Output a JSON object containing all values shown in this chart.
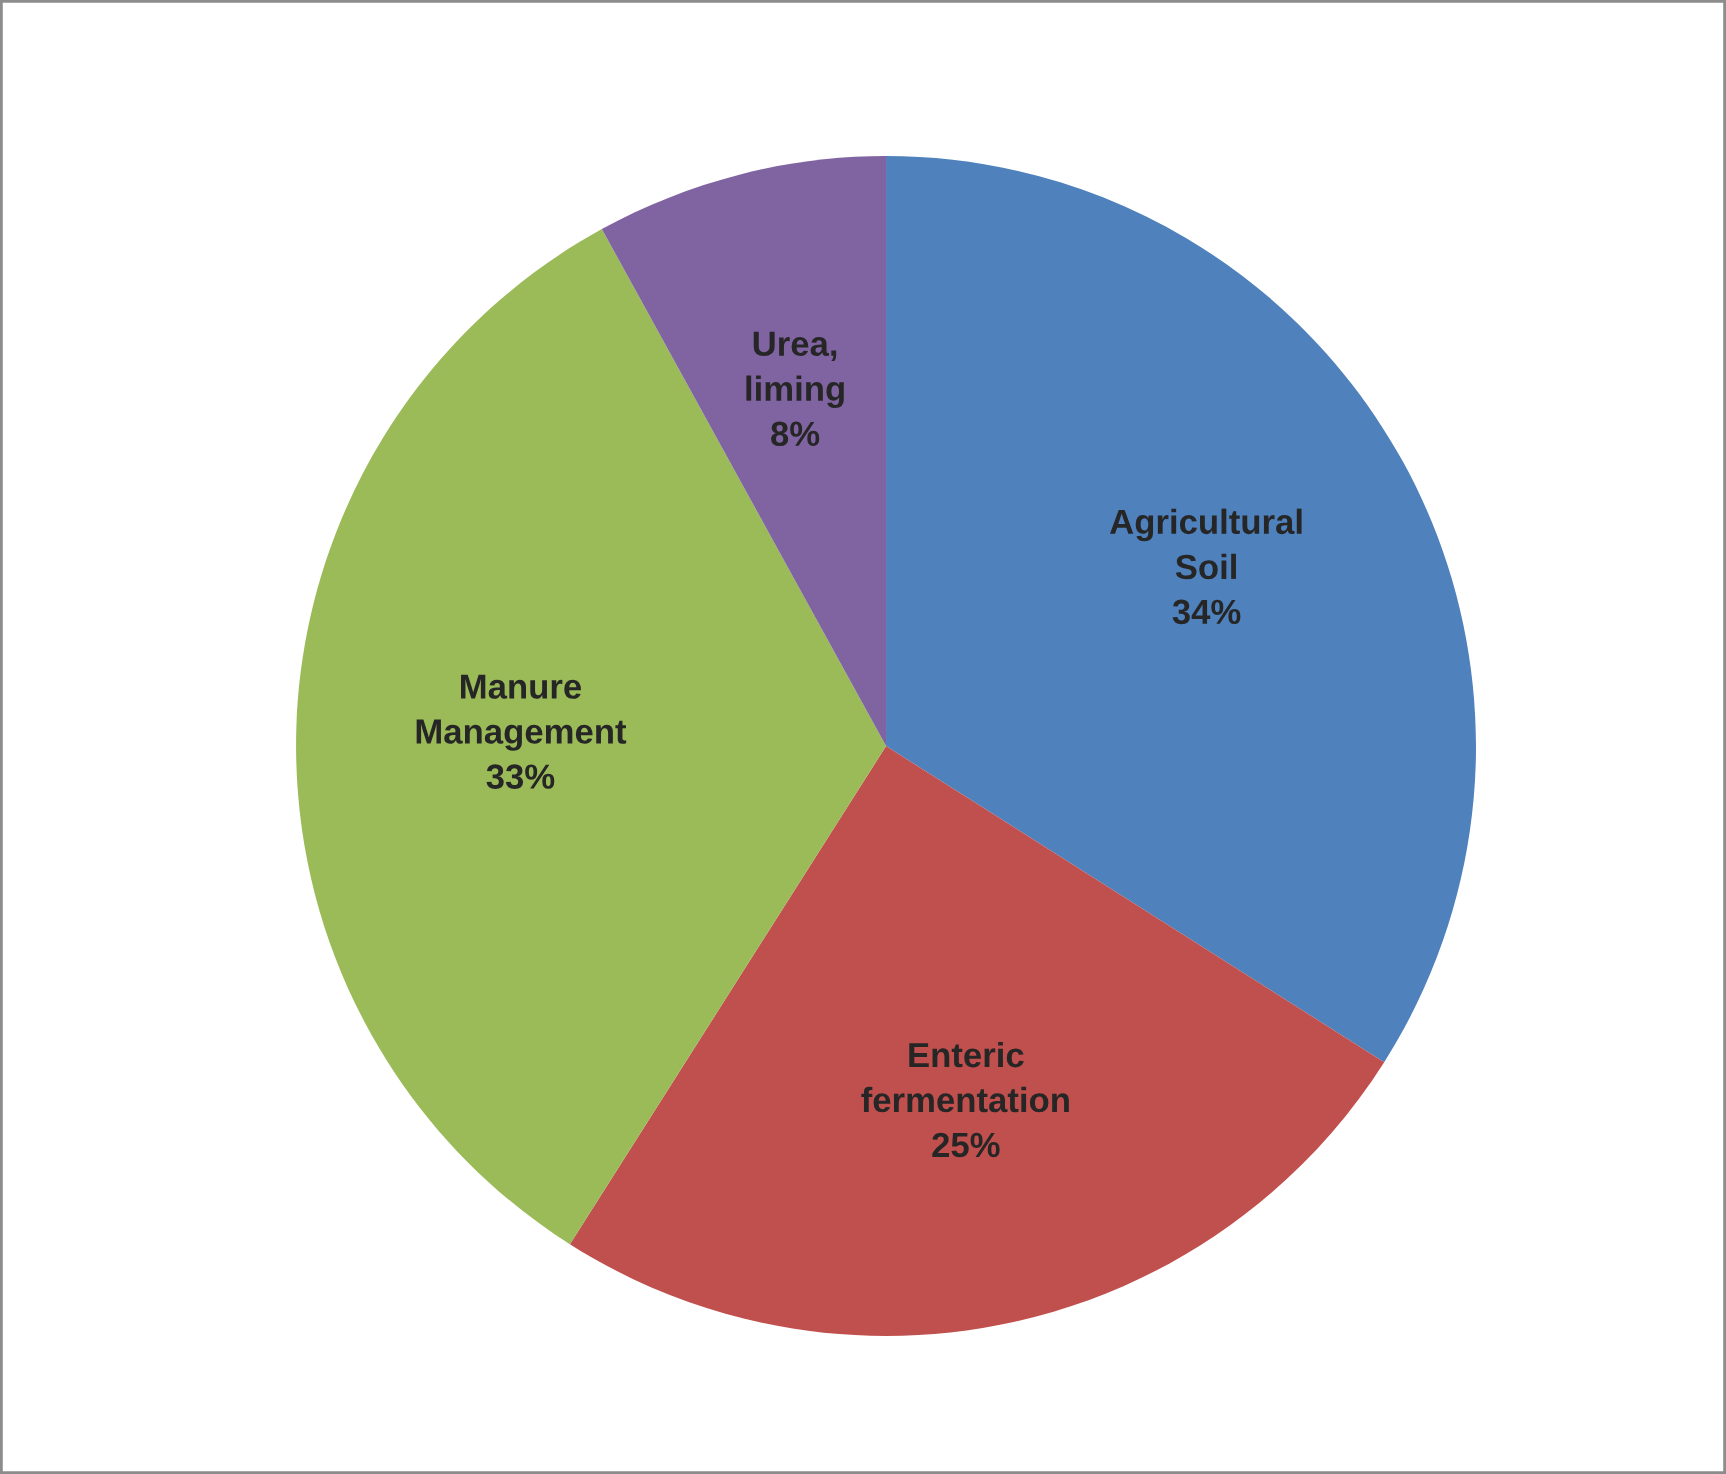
{
  "chart_data": {
    "type": "pie",
    "categories": [
      "Agricultural\nSoil",
      "Enteric\nfermentation",
      "Manure\nManagement",
      "Urea,\nliming"
    ],
    "values": [
      34,
      25,
      33,
      8
    ],
    "value_labels": [
      "34%",
      "25%",
      "33%",
      "8%"
    ],
    "colors": [
      "#4f81bd",
      "#c0504d",
      "#9bbb59",
      "#8064a2"
    ],
    "legend": false
  }
}
